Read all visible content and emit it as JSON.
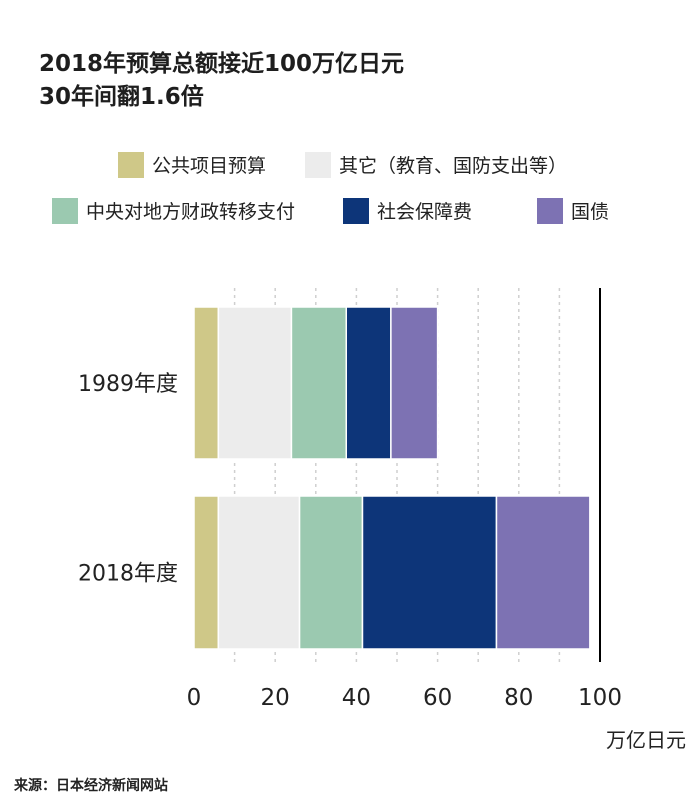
{
  "title": {
    "line1": "2018年预算总额接近100万亿日元",
    "line2": "30年间翻1.6倍"
  },
  "source": "来源：日本经济新闻网站",
  "chart_data": {
    "type": "bar",
    "orientation": "horizontal",
    "stacked": true,
    "categories": [
      "1989年度",
      "2018年度"
    ],
    "series": [
      {
        "name": "公共项目预算",
        "color": "#cfc888",
        "values": [
          6,
          6
        ]
      },
      {
        "name": "其它（教育、国防支出等）",
        "color": "#ececec",
        "values": [
          18,
          20
        ]
      },
      {
        "name": "中央对地方财政转移支付",
        "color": "#9bc9b0",
        "values": [
          13.5,
          15.5
        ]
      },
      {
        "name": "社会保障费",
        "color": "#0d3579",
        "values": [
          11,
          33
        ]
      },
      {
        "name": "国债",
        "color": "#7d72b3",
        "values": [
          11.5,
          23
        ]
      }
    ],
    "xlim": [
      0,
      100
    ],
    "xticks": [
      0,
      20,
      40,
      60,
      80,
      100
    ],
    "xlabel": "万亿日元",
    "grid": true,
    "legend_position": "top"
  }
}
